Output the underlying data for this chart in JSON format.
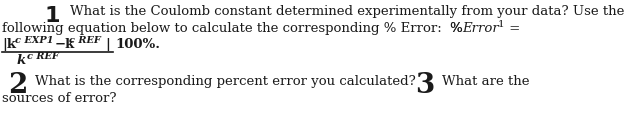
{
  "background_color": "#ffffff",
  "text_color": "#1a1a1a",
  "fig_width": 6.4,
  "fig_height": 1.33,
  "dpi": 100,
  "line1_num": "1",
  "line1_text": "What is the Coulomb constant determined experimentally from your data? Use the",
  "line2_text": "following equation below to calculate the corresponding % Error:  % ",
  "line2_error_italic": "Error",
  "line2_sub": "1",
  "line2_eq": " =",
  "num_left": "|k",
  "num_sub1": "c EXP1",
  "num_mid": "−k",
  "num_sub2": "c REF",
  "num_right": "|",
  "frac_suffix": "100%.",
  "den_k": "k",
  "den_sub": "c REF",
  "line3_num": "2",
  "line3_text": "What is the corresponding percent error you calculated?",
  "line3_num2": "3",
  "line3_text2": "What are the",
  "line4_text": "sources of error?"
}
